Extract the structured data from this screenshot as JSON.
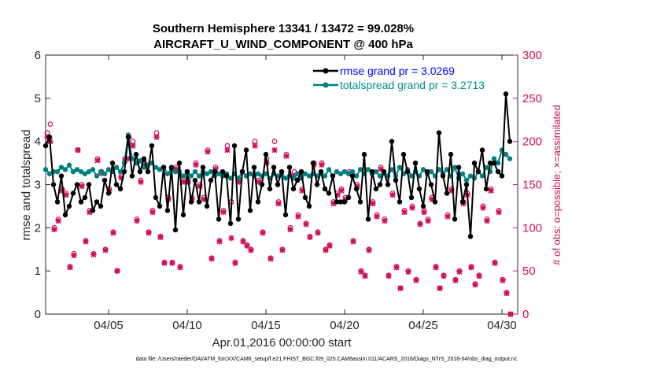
{
  "chart_data": {
    "type": "line",
    "title": "Southern Hemisphere 13341 / 13472 = 99.028%",
    "subtitle": "AIRCRAFT_U_WIND_COMPONENT @ 400 hPa",
    "xlabel": "Apr.01,2016 00:00:00 start",
    "ylabel": "rmse and totalspread",
    "y2label": "# of obs: o=possible; ×=assimilated",
    "xlim": [
      1,
      31
    ],
    "ylim": [
      0,
      6
    ],
    "y2lim": [
      0,
      300
    ],
    "x_ticks": [
      5,
      10,
      15,
      20,
      25,
      30
    ],
    "x_tick_labels": [
      "04/05",
      "04/10",
      "04/15",
      "04/20",
      "04/25",
      "04/30"
    ],
    "y_ticks": [
      "0",
      "1",
      "2",
      "3",
      "4",
      "5",
      "6"
    ],
    "y2_ticks": [
      "0",
      "50",
      "100",
      "150",
      "200",
      "250",
      "300"
    ],
    "grid": false,
    "legend_position": "top-right",
    "footnote": "data file: /Users/raeder/DAI/ATM_forcXX/CAM6_setup/f.e21.FHIST_BGC.f09_025.CAM6assim.011/ACARS_2016/Diags_NTrS_2016-04/obs_diag_output.nc",
    "series": [
      {
        "name": "rmse grand pr = 3.0269",
        "color": "#000000",
        "marker": "filled-circle",
        "x": [
          1.0,
          1.25,
          1.5,
          1.75,
          2.0,
          2.25,
          2.5,
          2.75,
          3.0,
          3.25,
          3.5,
          3.75,
          4.0,
          4.25,
          4.5,
          4.75,
          5.0,
          5.25,
          5.5,
          5.75,
          6.0,
          6.25,
          6.5,
          6.75,
          7.0,
          7.25,
          7.5,
          7.75,
          8.0,
          8.25,
          8.5,
          8.75,
          9.0,
          9.25,
          9.5,
          9.75,
          10.0,
          10.25,
          10.5,
          10.75,
          11.0,
          11.25,
          11.5,
          11.75,
          12.0,
          12.25,
          12.5,
          12.75,
          13.0,
          13.25,
          13.5,
          13.75,
          14.0,
          14.25,
          14.5,
          14.75,
          15.0,
          15.25,
          15.5,
          15.75,
          16.0,
          16.25,
          16.5,
          16.75,
          17.0,
          17.25,
          17.5,
          17.75,
          18.0,
          18.25,
          18.5,
          18.75,
          19.0,
          19.25,
          19.5,
          19.75,
          20.0,
          20.25,
          20.5,
          20.75,
          21.0,
          21.25,
          21.5,
          21.75,
          22.0,
          22.25,
          22.5,
          22.75,
          23.0,
          23.25,
          23.5,
          23.75,
          24.0,
          24.25,
          24.5,
          24.75,
          25.0,
          25.25,
          25.5,
          25.75,
          26.0,
          26.25,
          26.5,
          26.75,
          27.0,
          27.25,
          27.5,
          27.75,
          28.0,
          28.25,
          28.5,
          28.75,
          29.0,
          29.25,
          29.5,
          29.75,
          30.0,
          30.25,
          30.5
        ],
        "values": [
          3.9,
          4.1,
          3.0,
          2.6,
          3.2,
          2.3,
          2.5,
          2.8,
          3.0,
          2.6,
          2.7,
          3.0,
          2.4,
          2.6,
          2.5,
          3.1,
          2.8,
          3.5,
          3.0,
          2.9,
          3.3,
          4.1,
          3.2,
          3.7,
          3.3,
          3.6,
          3.3,
          3.9,
          2.7,
          2.5,
          3.4,
          2.4,
          3.4,
          1.95,
          3.5,
          2.3,
          3.3,
          2.6,
          3.1,
          2.6,
          3.4,
          2.5,
          3.1,
          3.3,
          2.2,
          3.3,
          3.2,
          2.1,
          3.9,
          2.2,
          3.3,
          3.8,
          2.4,
          3.4,
          2.6,
          3.0,
          3.7,
          2.9,
          3.4,
          3.0,
          3.3,
          2.3,
          3.4,
          2.9,
          3.1,
          3.3,
          2.7,
          2.5,
          3.5,
          3.0,
          3.3,
          2.9,
          2.8,
          3.2,
          2.6,
          2.6,
          2.6,
          2.7,
          3.2,
          2.9,
          2.6,
          3.7,
          2.2,
          3.3,
          2.9,
          3.0,
          3.3,
          3.0,
          4.0,
          3.1,
          2.6,
          3.7,
          3.3,
          2.7,
          3.5,
          2.9,
          2.5,
          3.3,
          3.0,
          2.6,
          4.2,
          3.2,
          2.8,
          3.7,
          2.2,
          3.4,
          2.6,
          3.0,
          1.8,
          3.5,
          3.3,
          3.8,
          2.9,
          3.5,
          3.5,
          3.3,
          3.2,
          5.1,
          4.0
        ]
      },
      {
        "name": "totalspread grand pr = 3.2713",
        "color": "#008080",
        "marker": "filled-circle",
        "x": [
          1.0,
          1.25,
          1.5,
          1.75,
          2.0,
          2.25,
          2.5,
          2.75,
          3.0,
          3.25,
          3.5,
          3.75,
          4.0,
          4.25,
          4.5,
          4.75,
          5.0,
          5.25,
          5.5,
          5.75,
          6.0,
          6.25,
          6.5,
          6.75,
          7.0,
          7.25,
          7.5,
          7.75,
          8.0,
          8.25,
          8.5,
          8.75,
          9.0,
          9.25,
          9.5,
          9.75,
          10.0,
          10.25,
          10.5,
          10.75,
          11.0,
          11.25,
          11.5,
          11.75,
          12.0,
          12.25,
          12.5,
          12.75,
          13.0,
          13.25,
          13.5,
          13.75,
          14.0,
          14.25,
          14.5,
          14.75,
          15.0,
          15.25,
          15.5,
          15.75,
          16.0,
          16.25,
          16.5,
          16.75,
          17.0,
          17.25,
          17.5,
          17.75,
          18.0,
          18.25,
          18.5,
          18.75,
          19.0,
          19.25,
          19.5,
          19.75,
          20.0,
          20.25,
          20.5,
          20.75,
          21.0,
          21.25,
          21.5,
          21.75,
          22.0,
          22.25,
          22.5,
          22.75,
          23.0,
          23.25,
          23.5,
          23.75,
          24.0,
          24.25,
          24.5,
          24.75,
          25.0,
          25.25,
          25.5,
          25.75,
          26.0,
          26.25,
          26.5,
          26.75,
          27.0,
          27.25,
          27.5,
          27.75,
          28.0,
          28.25,
          28.5,
          28.75,
          29.0,
          29.25,
          29.5,
          29.75,
          30.0,
          30.25,
          30.5
        ],
        "values": [
          3.35,
          3.25,
          3.3,
          3.3,
          3.4,
          3.35,
          3.45,
          3.3,
          3.35,
          3.3,
          3.25,
          3.3,
          3.35,
          3.2,
          3.3,
          3.25,
          3.35,
          3.3,
          3.4,
          3.3,
          3.5,
          4.15,
          3.6,
          3.5,
          3.55,
          3.4,
          3.45,
          3.5,
          3.4,
          3.35,
          3.4,
          3.25,
          3.35,
          3.3,
          3.3,
          3.2,
          3.3,
          3.2,
          3.3,
          3.2,
          3.3,
          3.25,
          3.3,
          3.2,
          3.25,
          3.2,
          3.25,
          3.15,
          3.25,
          3.15,
          3.3,
          3.2,
          3.25,
          3.2,
          3.25,
          3.2,
          3.25,
          3.15,
          3.25,
          3.2,
          3.25,
          3.15,
          3.2,
          3.15,
          3.25,
          3.15,
          3.25,
          3.2,
          3.25,
          3.2,
          3.3,
          3.2,
          3.35,
          3.2,
          3.3,
          3.25,
          3.3,
          3.25,
          3.3,
          3.2,
          3.35,
          3.25,
          3.35,
          3.25,
          3.3,
          3.2,
          3.3,
          3.2,
          3.35,
          3.2,
          3.4,
          3.25,
          3.35,
          3.2,
          3.3,
          3.2,
          3.35,
          3.25,
          3.3,
          3.2,
          3.35,
          3.25,
          3.35,
          3.2,
          3.4,
          3.15,
          3.25,
          3.1,
          3.2,
          3.15,
          3.3,
          3.2,
          3.4,
          3.3,
          3.6,
          3.5,
          3.8,
          3.7,
          3.6
        ]
      },
      {
        "name": "obs possible",
        "axis": "right",
        "color": "#d0105c",
        "marker": "open-circle",
        "x": [
          1.1,
          1.3,
          1.55,
          1.8,
          2.05,
          2.3,
          2.55,
          2.8,
          3.05,
          3.3,
          3.55,
          3.8,
          4.05,
          4.3,
          4.55,
          4.8,
          5.05,
          5.3,
          5.55,
          5.8,
          6.05,
          6.3,
          6.55,
          6.8,
          7.05,
          7.3,
          7.55,
          7.8,
          8.05,
          8.3,
          8.55,
          8.8,
          9.05,
          9.3,
          9.55,
          9.8,
          10.05,
          10.3,
          10.55,
          10.8,
          11.05,
          11.3,
          11.55,
          11.8,
          12.05,
          12.3,
          12.55,
          12.8,
          13.05,
          13.3,
          13.55,
          13.8,
          14.05,
          14.3,
          14.55,
          14.8,
          15.05,
          15.3,
          15.55,
          15.8,
          16.05,
          16.3,
          16.55,
          16.8,
          17.05,
          17.3,
          17.55,
          17.8,
          18.05,
          18.3,
          18.55,
          18.8,
          19.05,
          19.3,
          19.55,
          19.8,
          20.05,
          20.3,
          20.55,
          20.8,
          21.05,
          21.3,
          21.55,
          21.8,
          22.05,
          22.3,
          22.55,
          22.8,
          23.05,
          23.3,
          23.55,
          23.8,
          24.05,
          24.3,
          24.55,
          24.8,
          25.05,
          25.3,
          25.55,
          25.8,
          26.05,
          26.3,
          26.55,
          26.8,
          27.05,
          27.3,
          27.55,
          27.8,
          28.05,
          28.3,
          28.55,
          28.8,
          29.05,
          29.3,
          29.55,
          29.8,
          30.05,
          30.3,
          30.55
        ],
        "values": [
          210,
          220,
          100,
          110,
          145,
          140,
          55,
          70,
          190,
          150,
          85,
          120,
          70,
          180,
          165,
          75,
          145,
          95,
          50,
          160,
          180,
          205,
          200,
          110,
          155,
          175,
          95,
          120,
          210,
          90,
          60,
          135,
          60,
          170,
          55,
          155,
          155,
          135,
          175,
          150,
          135,
          190,
          65,
          170,
          85,
          120,
          195,
          130,
          60,
          155,
          85,
          80,
          75,
          200,
          155,
          95,
          180,
          65,
          200,
          130,
          75,
          185,
          100,
          165,
          115,
          145,
          105,
          90,
          175,
          95,
          175,
          75,
          80,
          130,
          140,
          145,
          135,
          165,
          85,
          150,
          50,
          45,
          75,
          130,
          115,
          170,
          110,
          45,
          140,
          55,
          30,
          120,
          50,
          125,
          40,
          105,
          120,
          110,
          135,
          55,
          30,
          45,
          115,
          145,
          40,
          50,
          130,
          140,
          55,
          35,
          45,
          125,
          110,
          145,
          60,
          120,
          40,
          25,
          0
        ]
      },
      {
        "name": "obs assimilated",
        "axis": "right",
        "color": "#d0105c",
        "marker": "cross",
        "x": [
          1.1,
          1.3,
          1.55,
          1.8,
          2.05,
          2.3,
          2.55,
          2.8,
          3.05,
          3.3,
          3.55,
          3.8,
          4.05,
          4.3,
          4.55,
          4.8,
          5.05,
          5.3,
          5.55,
          5.8,
          6.05,
          6.3,
          6.55,
          6.8,
          7.05,
          7.3,
          7.55,
          7.8,
          8.05,
          8.3,
          8.55,
          8.8,
          9.05,
          9.3,
          9.55,
          9.8,
          10.05,
          10.3,
          10.55,
          10.8,
          11.05,
          11.3,
          11.55,
          11.8,
          12.05,
          12.3,
          12.55,
          12.8,
          13.05,
          13.3,
          13.55,
          13.8,
          14.05,
          14.3,
          14.55,
          14.8,
          15.05,
          15.3,
          15.55,
          15.8,
          16.05,
          16.3,
          16.55,
          16.8,
          17.05,
          17.3,
          17.55,
          17.8,
          18.05,
          18.3,
          18.55,
          18.8,
          19.05,
          19.3,
          19.55,
          19.8,
          20.05,
          20.3,
          20.55,
          20.8,
          21.05,
          21.3,
          21.55,
          21.8,
          22.05,
          22.3,
          22.55,
          22.8,
          23.05,
          23.3,
          23.55,
          23.8,
          24.05,
          24.3,
          24.55,
          24.8,
          25.05,
          25.3,
          25.55,
          25.8,
          26.05,
          26.3,
          26.55,
          26.8,
          27.05,
          27.3,
          27.55,
          27.8,
          28.05,
          28.3,
          28.55,
          28.8,
          29.05,
          29.3,
          29.55,
          29.8,
          30.05,
          30.3,
          30.55
        ],
        "values": [
          205,
          200,
          98,
          108,
          143,
          138,
          54,
          68,
          190,
          148,
          84,
          118,
          69,
          178,
          163,
          74,
          143,
          94,
          50,
          158,
          178,
          180,
          195,
          108,
          153,
          172,
          94,
          118,
          205,
          89,
          59,
          133,
          59,
          168,
          54,
          153,
          153,
          133,
          173,
          148,
          133,
          188,
          64,
          168,
          84,
          118,
          190,
          88,
          59,
          153,
          84,
          79,
          74,
          195,
          153,
          94,
          175,
          64,
          190,
          128,
          74,
          183,
          98,
          160,
          113,
          143,
          104,
          89,
          173,
          94,
          173,
          74,
          79,
          128,
          138,
          143,
          133,
          163,
          84,
          148,
          49,
          44,
          74,
          128,
          113,
          168,
          108,
          44,
          138,
          54,
          30,
          118,
          49,
          123,
          39,
          104,
          118,
          108,
          133,
          54,
          30,
          44,
          113,
          143,
          39,
          49,
          128,
          138,
          54,
          34,
          44,
          123,
          108,
          143,
          59,
          118,
          39,
          24,
          0
        ]
      }
    ]
  }
}
